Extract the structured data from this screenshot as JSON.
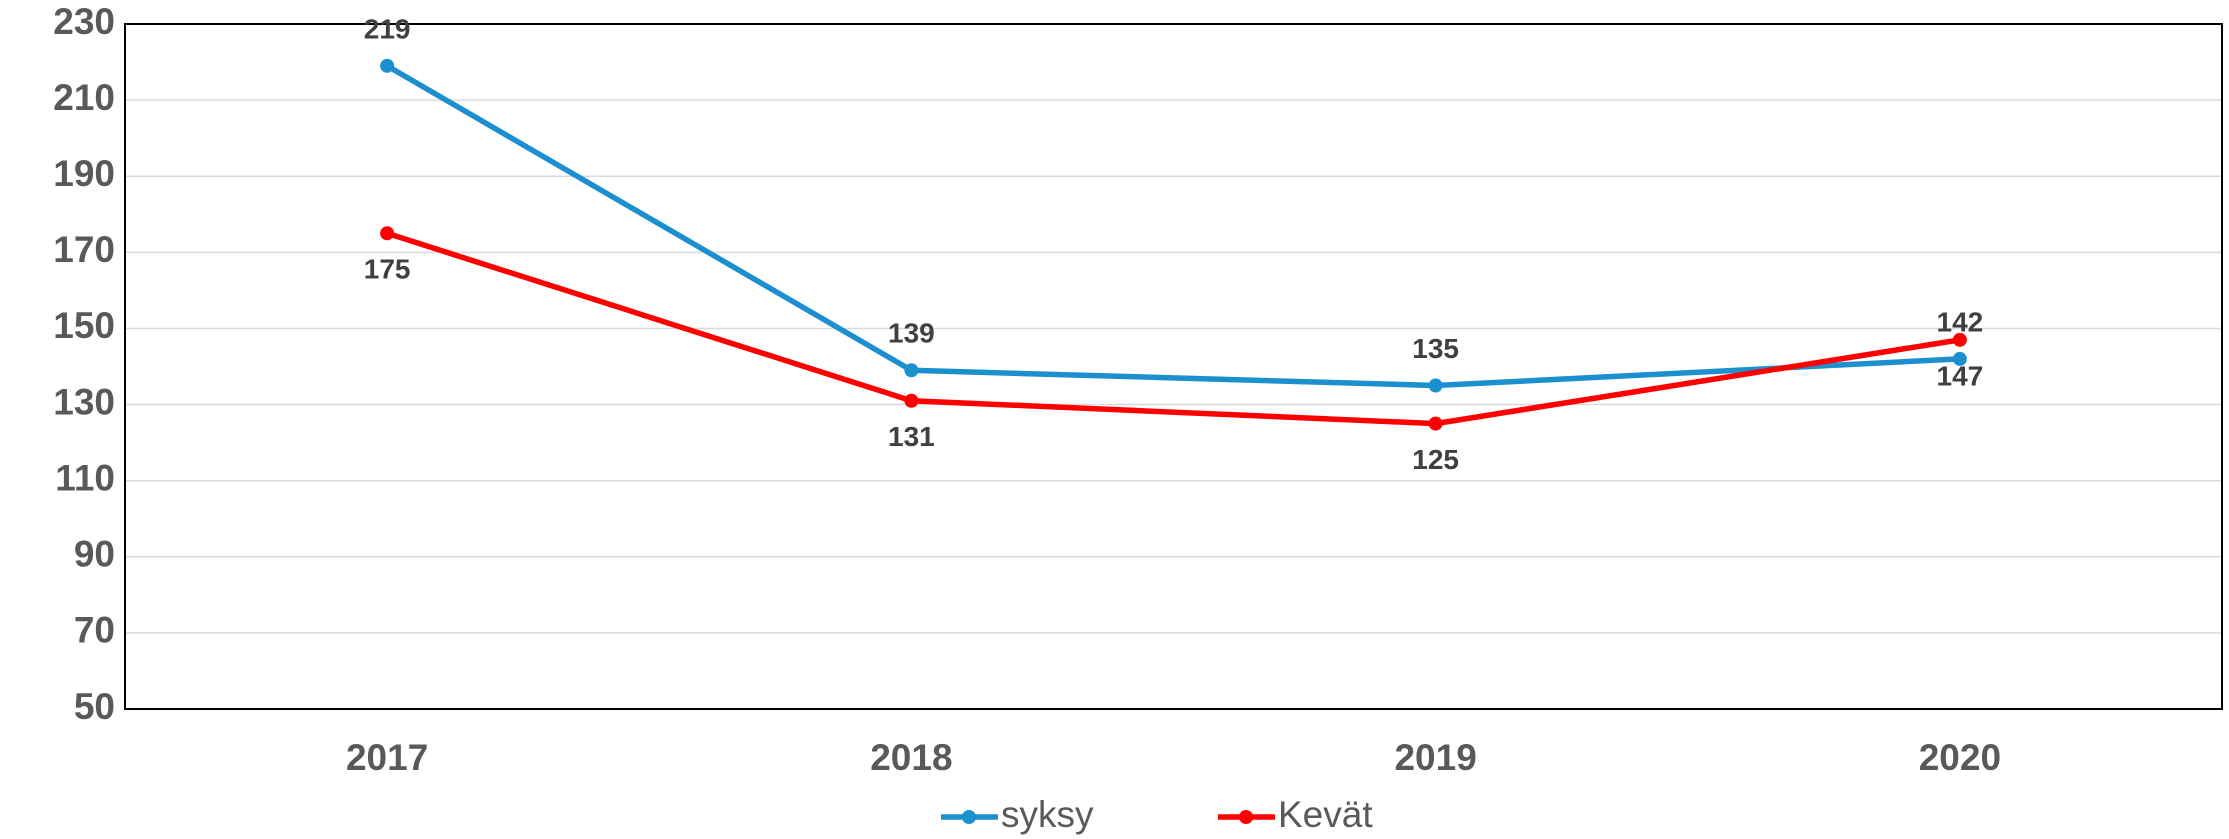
{
  "chart_data": {
    "type": "line",
    "categories": [
      "2017",
      "2018",
      "2019",
      "2020"
    ],
    "series": [
      {
        "name": "syksy",
        "color": "#1c8fcf",
        "values": [
          219,
          139,
          135,
          142
        ]
      },
      {
        "name": "Kevät",
        "color": "#ff0000",
        "values": [
          175,
          131,
          125,
          147
        ]
      }
    ],
    "ylim": [
      50,
      230
    ],
    "yticks": [
      50,
      70,
      90,
      110,
      130,
      150,
      170,
      190,
      210,
      230
    ],
    "grid": true,
    "legend": "bottom"
  }
}
